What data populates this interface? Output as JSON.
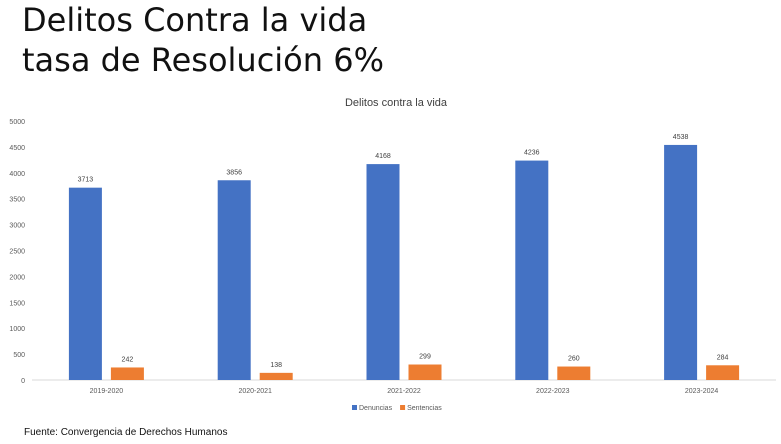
{
  "slide": {
    "title_line1": "Delitos Contra la vida",
    "title_line2": "tasa de Resolución 6%"
  },
  "source": "Fuente: Convergencia de Derechos Humanos",
  "chart_data": {
    "type": "bar",
    "title": "Delitos contra la vida",
    "categories": [
      "2019-2020",
      "2020-2021",
      "2021-2022",
      "2022-2023",
      "2023-2024"
    ],
    "series": [
      {
        "name": "Denuncias",
        "values": [
          3713,
          3856,
          4168,
          4236,
          4538
        ],
        "color": "#4472C4"
      },
      {
        "name": "Sentencias",
        "values": [
          242,
          138,
          299,
          260,
          284
        ],
        "color": "#ED7D31"
      }
    ],
    "ylim": [
      0,
      5000
    ],
    "yticks": [
      0,
      500,
      1000,
      1500,
      2000,
      2500,
      3000,
      3500,
      4000,
      4500,
      5000
    ],
    "grid": false,
    "legend": "bottom",
    "data_labels": true
  }
}
